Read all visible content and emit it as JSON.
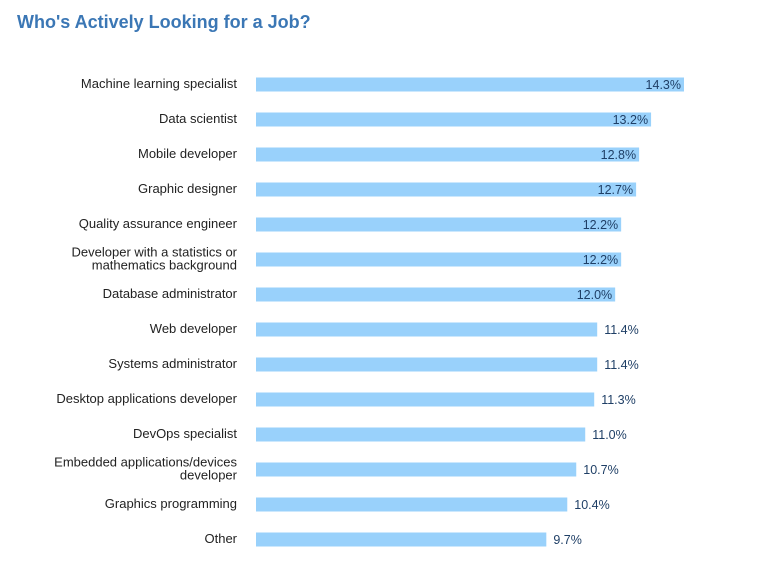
{
  "chart_data": {
    "type": "bar",
    "orientation": "horizontal",
    "title": "Who's Actively Looking for a Job?",
    "categories": [
      "Machine learning specialist",
      "Data scientist",
      "Mobile developer",
      "Graphic designer",
      "Quality assurance engineer",
      "Developer with a statistics or\nmathematics background",
      "Database administrator",
      "Web developer",
      "Systems administrator",
      "Desktop applications developer",
      "DevOps specialist",
      "Embedded applications/devices\ndeveloper",
      "Graphics programming",
      "Other"
    ],
    "values": [
      14.3,
      13.2,
      12.8,
      12.7,
      12.2,
      12.2,
      12.0,
      11.4,
      11.4,
      11.3,
      11.0,
      10.7,
      10.4,
      9.7
    ],
    "value_labels": [
      "14.3%",
      "13.2%",
      "12.8%",
      "12.7%",
      "12.2%",
      "12.2%",
      "12.0%",
      "11.4%",
      "11.4%",
      "11.3%",
      "11.0%",
      "10.7%",
      "10.4%",
      "9.7%"
    ],
    "xlim": [
      0,
      14.3
    ],
    "grid": false,
    "legend": "none",
    "bar_color": "#99d1fb",
    "title_color": "#3b77b5",
    "label_color": "#222222",
    "value_color": "#1f3f66"
  }
}
